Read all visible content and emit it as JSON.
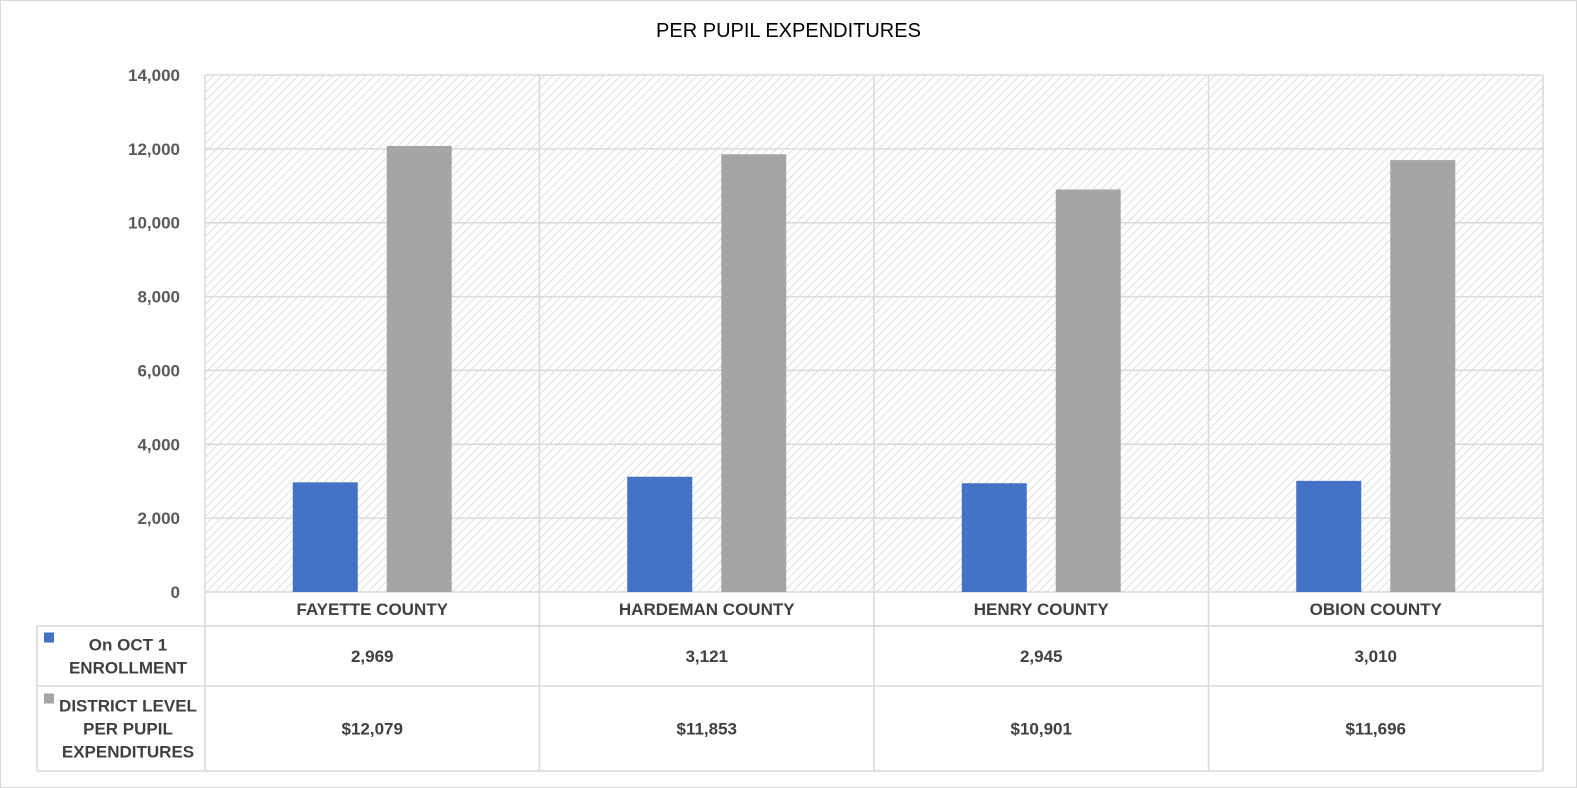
{
  "chart_data": {
    "type": "bar",
    "title": "PER PUPIL EXPENDITURES",
    "categories": [
      "FAYETTE COUNTY",
      "HARDEMAN COUNTY",
      "HENRY COUNTY",
      "OBION COUNTY"
    ],
    "series": [
      {
        "name": "On OCT 1 ENROLLMENT",
        "name_lines": [
          "On OCT 1",
          "ENROLLMENT"
        ],
        "color": "#4472c4",
        "values": [
          2969,
          3121,
          2945,
          3010
        ],
        "table_labels": [
          "2,969",
          "3,121",
          "2,945",
          "3,010"
        ]
      },
      {
        "name": "DISTRICT LEVEL PER PUPIL EXPENDITURES",
        "name_lines": [
          "DISTRICT LEVEL",
          "PER PUPIL",
          "EXPENDITURES"
        ],
        "color": "#a5a5a5",
        "values": [
          12079,
          11853,
          10901,
          11696
        ],
        "table_labels": [
          "$12,079",
          "$11,853",
          "$10,901",
          "$11,696"
        ]
      }
    ],
    "ylim": [
      0,
      14000
    ],
    "yticks": [
      0,
      2000,
      4000,
      6000,
      8000,
      10000,
      12000,
      14000
    ],
    "ytick_labels": [
      "0",
      "2,000",
      "4,000",
      "6,000",
      "8,000",
      "10,000",
      "12,000",
      "14,000"
    ],
    "grid": true,
    "legend": "data-table"
  }
}
